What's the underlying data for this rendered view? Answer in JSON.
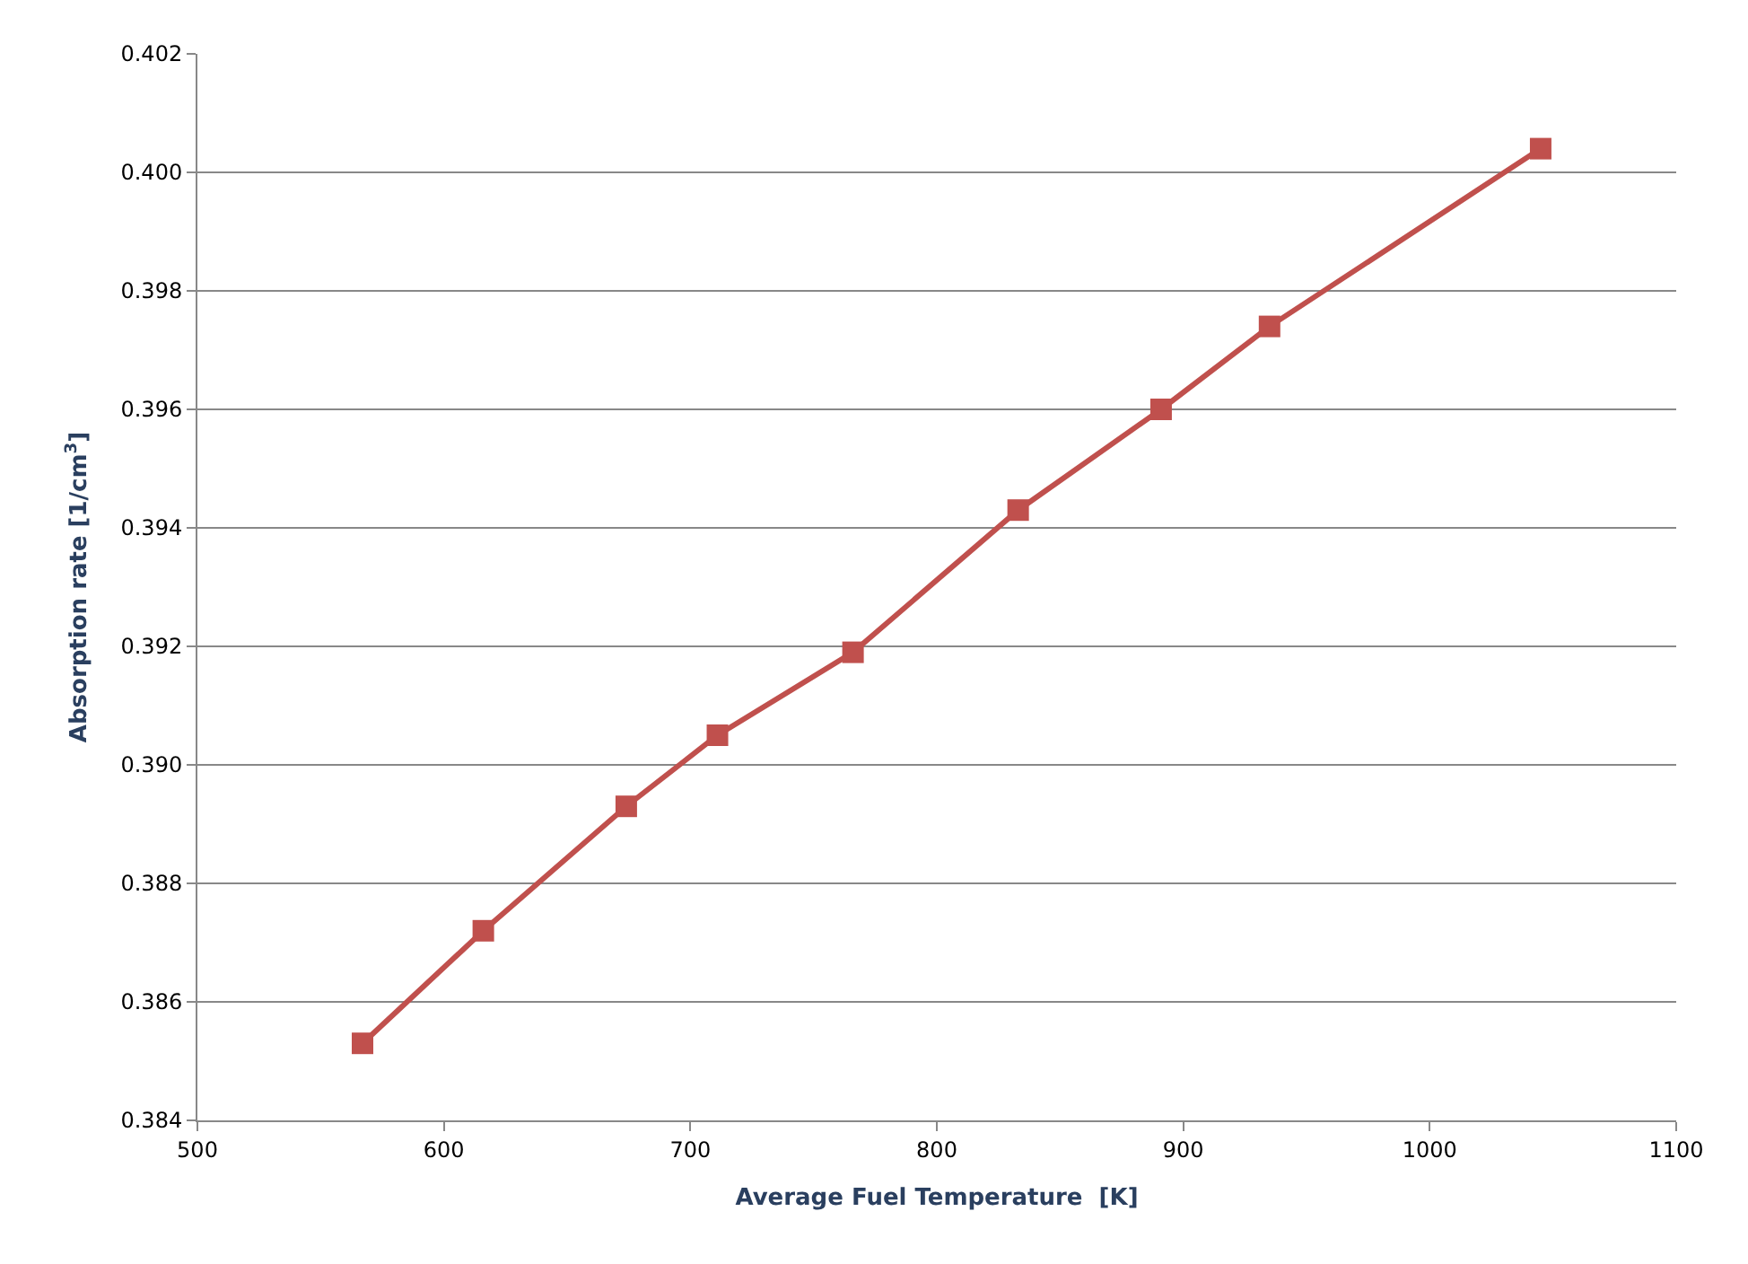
{
  "chart_data": {
    "type": "line",
    "xlabel": "Average Fuel Temperature  [K]",
    "ylabel": "Absorption rate [1/cm$^{3}$]",
    "series": [
      {
        "color": "#c0504d",
        "x": [
          567,
          616,
          674,
          711,
          766,
          833,
          891,
          935,
          1045
        ],
        "values": [
          0.3853,
          0.3872,
          0.3893,
          0.3905,
          0.3919,
          0.3943,
          0.396,
          0.3974,
          0.4004
        ]
      }
    ],
    "xlim": [
      500,
      1100
    ],
    "xticks": [
      500,
      600,
      700,
      800,
      900,
      1000,
      1100
    ],
    "ylim": [
      0.384,
      0.402
    ],
    "yticks": [
      {
        "value": 0.384,
        "label": "0.384"
      },
      {
        "value": 0.386,
        "label": "0.386"
      },
      {
        "value": 0.388,
        "label": "0.388"
      },
      {
        "value": 0.39,
        "label": "0.390"
      },
      {
        "value": 0.392,
        "label": "0.392"
      },
      {
        "value": 0.394,
        "label": "0.394"
      },
      {
        "value": 0.396,
        "label": "0.396"
      },
      {
        "value": 0.398,
        "label": "0.398"
      },
      {
        "value": 0.4,
        "label": "0.400"
      },
      {
        "value": 0.402,
        "label": "0.402"
      }
    ],
    "grid": "y",
    "marker": "square",
    "line_style": "solid",
    "legend": false
  }
}
